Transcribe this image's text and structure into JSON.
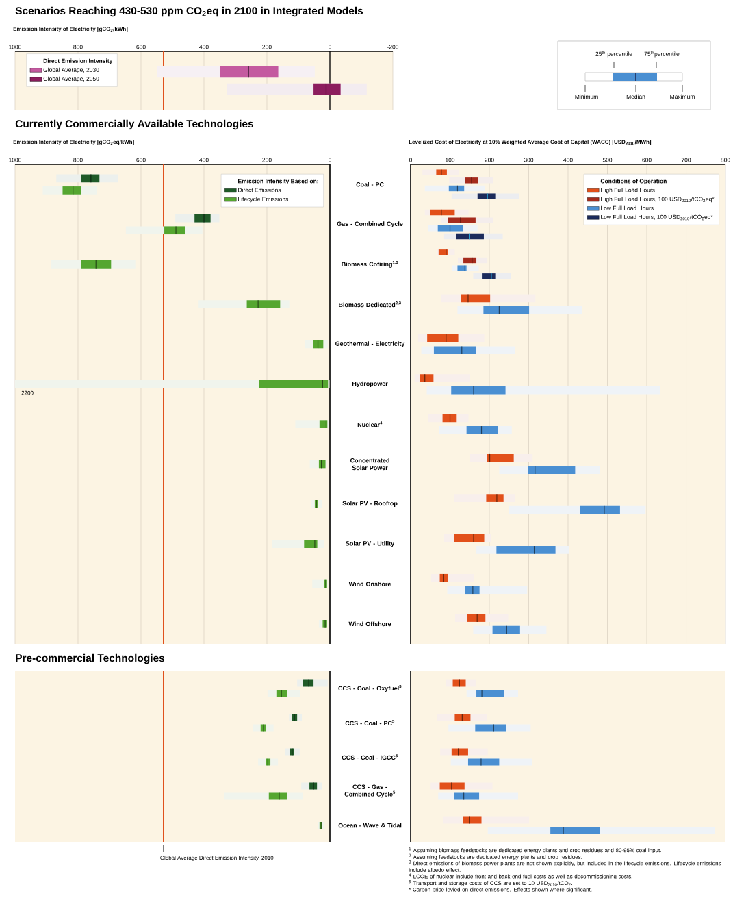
{
  "chart_data": [
    {
      "type": "box",
      "orientation": "horizontal",
      "title": "Scenarios Reaching 430-530 ppm CO$_{2}$eq in 2100 in Integrated Models",
      "xlabel": "Emission Intensity of Electricity [gCO$_{2}$/kWh]",
      "categories": [
        null
      ],
      "xlim": [
        1000,
        -200
      ],
      "xticks": [
        1000,
        800,
        600,
        400,
        200,
        0,
        -200
      ],
      "grid": "x",
      "legend": "top left",
      "legend_title": "Direct Emission Intensity",
      "ref_lines": [
        {
          "axis": "x",
          "value": 529,
          "color": "#e0501c"
        },
        {
          "axis": "x",
          "value": 0,
          "color": "#000000"
        }
      ],
      "series": [
        {
          "name": "Global Average, 2030",
          "color": "#c45aa0",
          "boxes": [
            {
              "low": 48,
              "q1": 164,
              "median": 258,
              "q3": 350,
              "high": 549
            }
          ]
        },
        {
          "name": "Global Average, 2050",
          "color": "#8c1d5e",
          "boxes": [
            {
              "low": -117,
              "q1": -34,
              "median": 12,
              "q3": 52,
              "high": 326
            }
          ]
        }
      ]
    },
    {
      "type": "other",
      "annotations": [
        "25$^{th}$ percentile",
        "75$^{th}$percentile",
        "Minimum",
        "Median",
        "Maximum"
      ]
    },
    {
      "type": "box",
      "orientation": "horizontal",
      "title": "Currently Commercially Available Technologies",
      "xlabel": "Emission Intensity of Electricity [gCO$_{2}$eq/kWh]",
      "xlim": [
        1000,
        0
      ],
      "xticks": [
        1000,
        800,
        600,
        400,
        200,
        0
      ],
      "grid": "x",
      "legend": "top right",
      "legend_title": "Emission Intensity Based on:",
      "categories": [
        "Coal - PC",
        "Gas - Combined Cycle",
        "Biomass Cofiring$^{1,3}$",
        "Biomass Dedicated$^{2,3}$",
        "Geothermal - Electricity",
        "Hydropower",
        "Nuclear$^{4}$",
        "Concentrated Solar Power",
        "Solar PV - Rooftop",
        "Solar PV - Utility",
        "Wind Onshore",
        "Wind Offshore"
      ],
      "ref_lines": [
        {
          "axis": "x",
          "value": 529,
          "color": "#e0501c"
        }
      ],
      "annotations": [
        "2200"
      ],
      "series": [
        {
          "name": "Direct Emissions",
          "color": "#1f5a28",
          "boxes": [
            {
              "low": 673,
              "q1": 732,
              "median": 759,
              "q3": 790,
              "high": 869
            },
            {
              "low": 351,
              "q1": 379,
              "median": 400,
              "q3": 430,
              "high": 491
            },
            null,
            null,
            null,
            null,
            null,
            null,
            null,
            null,
            null,
            null
          ]
        },
        {
          "name": "Lifecycle Emissions",
          "color": "#55a630",
          "boxes": [
            {
              "low": 741,
              "q1": 790,
              "median": 816,
              "q3": 849,
              "high": 912
            },
            {
              "low": 405,
              "q1": 459,
              "median": 489,
              "q3": 526,
              "high": 648
            },
            {
              "low": 618,
              "q1": 695,
              "median": 743,
              "q3": 790,
              "high": 887
            },
            {
              "low": 129,
              "q1": 158,
              "median": 228,
              "q3": 264,
              "high": 417
            },
            {
              "low": 7,
              "q1": 21,
              "median": 38,
              "q3": 54,
              "high": 79
            },
            {
              "low": 1,
              "q1": 6,
              "median": 23,
              "q3": 225,
              "high": 2200
            },
            {
              "low": 4,
              "q1": 8,
              "median": 12,
              "q3": 33,
              "high": 110
            },
            {
              "low": 9,
              "q1": 14,
              "median": 27,
              "q3": 35,
              "high": 64
            },
            {
              "low": 25,
              "q1": 38,
              "median": 43,
              "q3": 48,
              "high": 60
            },
            {
              "low": 18,
              "q1": 40,
              "median": 48,
              "q3": 82,
              "high": 183
            },
            {
              "low": 7,
              "q1": 9,
              "median": 13,
              "q3": 19,
              "high": 56
            },
            {
              "low": 8,
              "q1": 9,
              "median": 15,
              "q3": 23,
              "high": 35
            }
          ]
        }
      ]
    },
    {
      "type": "box",
      "orientation": "horizontal",
      "xlabel": "Levelized Cost of Electricity at 10% Weighted Average Cost of Capital (WACC) [USD$_{2010}$/MWh]",
      "xlim": [
        0,
        800
      ],
      "xticks": [
        0,
        100,
        200,
        300,
        400,
        500,
        600,
        700,
        800
      ],
      "grid": "x",
      "legend": "top right",
      "legend_title": "Conditions of Operation",
      "tick_labels": "x",
      "categories": [
        null,
        null,
        null,
        null,
        null,
        null,
        null,
        null,
        null,
        null,
        null,
        null
      ],
      "series": [
        {
          "name": "High Full Load Hours",
          "color": "#e2501a",
          "boxes": [
            {
              "low": 30,
              "q1": 65,
              "median": 78,
              "q3": 92,
              "high": 122
            },
            {
              "low": 36,
              "q1": 49,
              "median": 78,
              "q3": 112,
              "high": 147
            },
            {
              "low": 66,
              "q1": 71,
              "median": 90,
              "q3": 95,
              "high": 112
            },
            {
              "low": 78,
              "q1": 127,
              "median": 146,
              "q3": 202,
              "high": 317
            },
            {
              "low": 19,
              "q1": 42,
              "median": 90,
              "q3": 121,
              "high": 187
            },
            {
              "low": 10,
              "q1": 23,
              "median": 36,
              "q3": 58,
              "high": 151
            },
            {
              "low": 45,
              "q1": 81,
              "median": 100,
              "q3": 117,
              "high": 147
            },
            {
              "low": 151,
              "q1": 194,
              "median": 201,
              "q3": 262,
              "high": 310
            },
            {
              "low": 110,
              "q1": 192,
              "median": 219,
              "q3": 236,
              "high": 265
            },
            {
              "low": 85,
              "q1": 110,
              "median": 160,
              "q3": 187,
              "high": 205
            },
            {
              "low": 52,
              "q1": 74,
              "median": 84,
              "q3": 95,
              "high": 160
            },
            {
              "low": 113,
              "q1": 144,
              "median": 169,
              "q3": 190,
              "high": 248
            }
          ]
        },
        {
          "name": "High Full Load Hours, 100 USD$_{2010}$/tCO$_{2}$eq*",
          "color": "#a52b1c",
          "boxes": [
            {
              "low": 98,
              "q1": 138,
              "median": 155,
              "q3": 171,
              "high": 209
            },
            {
              "low": 76,
              "q1": 94,
              "median": 127,
              "q3": 165,
              "high": 210
            },
            {
              "low": 120,
              "q1": 134,
              "median": 156,
              "q3": 167,
              "high": 195
            },
            null,
            null,
            null,
            null,
            null,
            null,
            null,
            null,
            null
          ]
        },
        {
          "name": "Low Full Load Hours",
          "color": "#4a8fd2",
          "boxes": [
            {
              "low": 36,
              "q1": 97,
              "median": 119,
              "q3": 136,
              "high": 189
            },
            {
              "low": 44,
              "q1": 69,
              "median": 100,
              "q3": 133,
              "high": 170
            },
            {
              "low": 105,
              "q1": 119,
              "median": 138,
              "q3": 142,
              "high": 173
            },
            {
              "low": 119,
              "q1": 185,
              "median": 225,
              "q3": 301,
              "high": 435
            },
            {
              "low": 27,
              "q1": 59,
              "median": 130,
              "q3": 166,
              "high": 265
            },
            {
              "low": 41,
              "q1": 103,
              "median": 160,
              "q3": 241,
              "high": 634
            },
            {
              "low": 72,
              "q1": 142,
              "median": 180,
              "q3": 222,
              "high": 257
            },
            {
              "low": 225,
              "q1": 298,
              "median": 316,
              "q3": 418,
              "high": 480
            },
            {
              "low": 249,
              "q1": 431,
              "median": 492,
              "q3": 532,
              "high": 597
            },
            {
              "low": 167,
              "q1": 218,
              "median": 314,
              "q3": 368,
              "high": 403
            },
            {
              "low": 93,
              "q1": 139,
              "median": 158,
              "q3": 175,
              "high": 296
            },
            {
              "low": 159,
              "q1": 208,
              "median": 244,
              "q3": 278,
              "high": 345
            }
          ]
        },
        {
          "name": "Low Full Load Hours, 100 USD$_{2010}$/tCO$_{2}$eq*",
          "color": "#1c2b5b",
          "boxes": [
            {
              "low": 104,
              "q1": 170,
              "median": 195,
              "q3": 215,
              "high": 276
            },
            {
              "low": 85,
              "q1": 115,
              "median": 149,
              "q3": 186,
              "high": 234
            },
            {
              "low": 159,
              "q1": 181,
              "median": 205,
              "q3": 215,
              "high": 255
            },
            null,
            null,
            null,
            null,
            null,
            null,
            null,
            null,
            null
          ]
        }
      ]
    },
    {
      "type": "box",
      "orientation": "horizontal",
      "title": "Pre-commercial Technologies",
      "xlim": [
        1000,
        0
      ],
      "xticks": [
        1000,
        800,
        600,
        400,
        200,
        0
      ],
      "grid": "x",
      "tick_labels": "y",
      "categories": [
        "CCS - Coal - Oxyfuel$^{5}$",
        "CCS - Coal - PC$^{5}$",
        "CCS - Coal - IGCC$^{5}$",
        "CCS - Gas - Combined Cycle$^{5}$",
        "Ocean - Wave & Tidal"
      ],
      "ref_lines": [
        {
          "axis": "x",
          "value": 529,
          "color": "#e0501c",
          "label": "Global Average Direct Emission Intensity, 2010"
        }
      ],
      "series": [
        {
          "color": "#1f5a28",
          "boxes": [
            {
              "low": 7,
              "q1": 52,
              "median": 67,
              "q3": 85,
              "high": 104
            },
            {
              "low": 89,
              "q1": 104,
              "median": 113,
              "q3": 120,
              "high": 130
            },
            {
              "low": 96,
              "q1": 113,
              "median": 120,
              "q3": 128,
              "high": 142
            },
            {
              "low": 24,
              "q1": 41,
              "median": 52,
              "q3": 65,
              "high": 91
            },
            null
          ]
        },
        {
          "color": "#55a630",
          "boxes": [
            {
              "low": 94,
              "q1": 137,
              "median": 154,
              "q3": 170,
              "high": 198
            },
            {
              "low": 179,
              "q1": 203,
              "median": 211,
              "q3": 220,
              "high": 244
            },
            {
              "low": 165,
              "q1": 189,
              "median": 197,
              "q3": 204,
              "high": 228
            },
            {
              "low": 87,
              "q1": 135,
              "median": 161,
              "q3": 194,
              "high": 337
            },
            {
              "low": 17,
              "q1": 24,
              "median": 28,
              "q3": 33,
              "high": 37
            }
          ]
        }
      ]
    },
    {
      "type": "box",
      "orientation": "horizontal",
      "xlim": [
        0,
        800
      ],
      "xticks": [
        0,
        100,
        200,
        300,
        400,
        500,
        600,
        700,
        800
      ],
      "grid": "x",
      "tick_labels": false,
      "categories": [
        null,
        null,
        null,
        null,
        null
      ],
      "annotations": [
        "$^{1}$ Assuming biomass feedstocks are dedicated energy plants and crop residues and 80-95% coal input.",
        "$^{2}$ Assuming feedstocks are dedicated energy plants and crop residues.",
        "$^{3}$ Direct emissions of biomass power plants are not shown explicitly, but included in the lifecycle emissions. Lifecycle emissions include albedo effect.",
        "$^{4}$ LCOE of nuclear include front and back-end fuel costs as well as decommissioning costs.",
        "$^{5}$ Transport and storage costs of CCS are set to 10 USD$_{2010}$/tCO$_{2}$.",
        "* Carbon price levied on direct emissions. Effects shown where significant."
      ],
      "series": [
        {
          "color": "#e2501a",
          "boxes": [
            {
              "low": 90,
              "q1": 107,
              "median": 124,
              "q3": 140,
              "high": 165
            },
            {
              "low": 68,
              "q1": 112,
              "median": 131,
              "q3": 152,
              "high": 194
            },
            {
              "low": 75,
              "q1": 104,
              "median": 121,
              "q3": 146,
              "high": 196
            },
            {
              "low": 51,
              "q1": 74,
              "median": 104,
              "q3": 137,
              "high": 208
            },
            {
              "low": 82,
              "q1": 133,
              "median": 149,
              "q3": 180,
              "high": 301
            }
          ]
        },
        {
          "color": "#4a8fd2",
          "boxes": [
            {
              "low": 142,
              "q1": 167,
              "median": 181,
              "q3": 237,
              "high": 273
            },
            {
              "low": 96,
              "q1": 164,
              "median": 211,
              "q3": 243,
              "high": 305
            },
            {
              "low": 102,
              "q1": 146,
              "median": 179,
              "q3": 225,
              "high": 308
            },
            {
              "low": 70,
              "q1": 110,
              "median": 135,
              "q3": 174,
              "high": 273
            },
            {
              "low": 196,
              "q1": 355,
              "median": 388,
              "q3": 481,
              "high": 773
            }
          ]
        }
      ]
    }
  ]
}
